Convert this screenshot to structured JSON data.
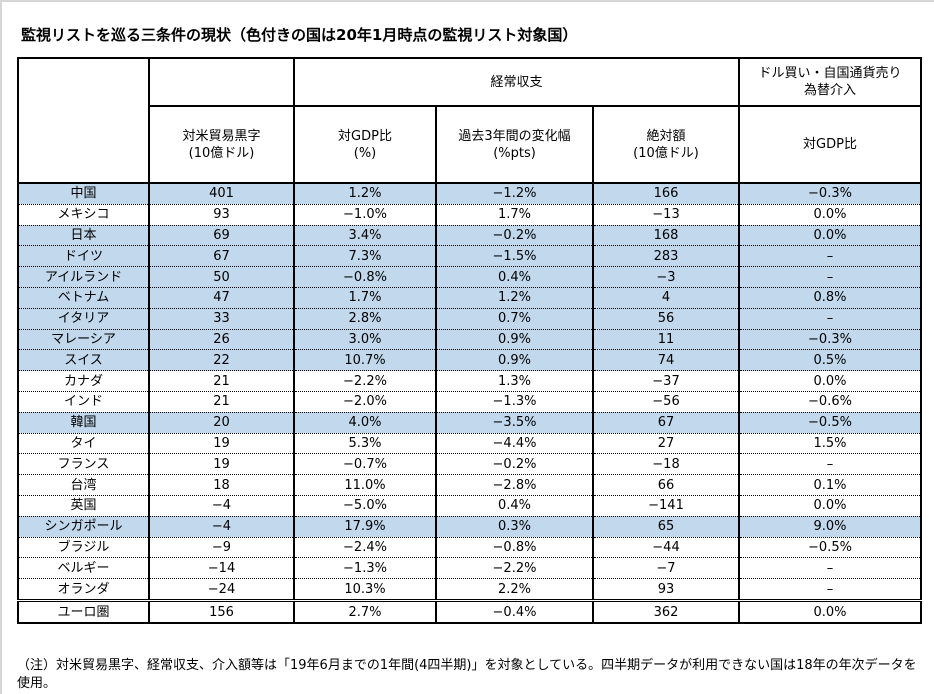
{
  "title": "監視リストを巡る三条件の現状（色付きの国は20年1月時点の監視リスト対象国）",
  "columns": {
    "current_account_group": "経常収支",
    "intervention_group": "ドル買い・自国通貨売り\n為替介入",
    "trade_surplus": "対米貿易黒字\n(10億ドル)",
    "gdp_ratio": "対GDP比\n(%)",
    "change_3y": "過去3年間の変化幅\n(%pts)",
    "absolute": "絶対額\n(10億ドル)",
    "intervention_gdp": "対GDP比"
  },
  "rows": [
    {
      "country": "中国",
      "values": [
        "401",
        "1.2%",
        "−1.2%",
        "166",
        "−0.3%"
      ],
      "highlighted": true,
      "euro": false
    },
    {
      "country": "メキシコ",
      "values": [
        "93",
        "−1.0%",
        "1.7%",
        "−13",
        "0.0%"
      ],
      "highlighted": false,
      "euro": false
    },
    {
      "country": "日本",
      "values": [
        "69",
        "3.4%",
        "−0.2%",
        "168",
        "0.0%"
      ],
      "highlighted": true,
      "euro": false
    },
    {
      "country": "ドイツ",
      "values": [
        "67",
        "7.3%",
        "−1.5%",
        "283",
        "–"
      ],
      "highlighted": true,
      "euro": false
    },
    {
      "country": "アイルランド",
      "values": [
        "50",
        "−0.8%",
        "0.4%",
        "−3",
        "–"
      ],
      "highlighted": true,
      "euro": false
    },
    {
      "country": "ベトナム",
      "values": [
        "47",
        "1.7%",
        "1.2%",
        "4",
        "0.8%"
      ],
      "highlighted": true,
      "euro": false
    },
    {
      "country": "イタリア",
      "values": [
        "33",
        "2.8%",
        "0.7%",
        "56",
        "–"
      ],
      "highlighted": true,
      "euro": false
    },
    {
      "country": "マレーシア",
      "values": [
        "26",
        "3.0%",
        "0.9%",
        "11",
        "−0.3%"
      ],
      "highlighted": true,
      "euro": false
    },
    {
      "country": "スイス",
      "values": [
        "22",
        "10.7%",
        "0.9%",
        "74",
        "0.5%"
      ],
      "highlighted": true,
      "euro": false
    },
    {
      "country": "カナダ",
      "values": [
        "21",
        "−2.2%",
        "1.3%",
        "−37",
        "0.0%"
      ],
      "highlighted": false,
      "euro": false
    },
    {
      "country": "インド",
      "values": [
        "21",
        "−2.0%",
        "−1.3%",
        "−56",
        "−0.6%"
      ],
      "highlighted": false,
      "euro": false
    },
    {
      "country": "韓国",
      "values": [
        "20",
        "4.0%",
        "−3.5%",
        "67",
        "−0.5%"
      ],
      "highlighted": true,
      "euro": false
    },
    {
      "country": "タイ",
      "values": [
        "19",
        "5.3%",
        "−4.4%",
        "27",
        "1.5%"
      ],
      "highlighted": false,
      "euro": false
    },
    {
      "country": "フランス",
      "values": [
        "19",
        "−0.7%",
        "−0.2%",
        "−18",
        "–"
      ],
      "highlighted": false,
      "euro": false
    },
    {
      "country": "台湾",
      "values": [
        "18",
        "11.0%",
        "−2.8%",
        "66",
        "0.1%"
      ],
      "highlighted": false,
      "euro": false
    },
    {
      "country": "英国",
      "values": [
        "−4",
        "−5.0%",
        "0.4%",
        "−141",
        "0.0%"
      ],
      "highlighted": false,
      "euro": false
    },
    {
      "country": "シンガポール",
      "values": [
        "−4",
        "17.9%",
        "0.3%",
        "65",
        "9.0%"
      ],
      "highlighted": true,
      "euro": false
    },
    {
      "country": "ブラジル",
      "values": [
        "−9",
        "−2.4%",
        "−0.8%",
        "−44",
        "−0.5%"
      ],
      "highlighted": false,
      "euro": false
    },
    {
      "country": "ベルギー",
      "values": [
        "−14",
        "−1.3%",
        "−2.2%",
        "−7",
        "–"
      ],
      "highlighted": false,
      "euro": false
    },
    {
      "country": "オランダ",
      "values": [
        "−24",
        "10.3%",
        "2.2%",
        "93",
        "–"
      ],
      "highlighted": false,
      "euro": false
    },
    {
      "country": "ユーロ圏",
      "values": [
        "156",
        "2.7%",
        "−0.4%",
        "362",
        "0.0%"
      ],
      "highlighted": false,
      "euro": true
    }
  ],
  "footnote": "（注）対米貿易黒字、経常収支、介入額等は「19年6月までの1年間(4四半期)」を対象としている。四半期データが利用できない国は18年の年次データを使用。",
  "colors": {
    "highlight_row": "#c2d8ec",
    "border": "#000000"
  }
}
